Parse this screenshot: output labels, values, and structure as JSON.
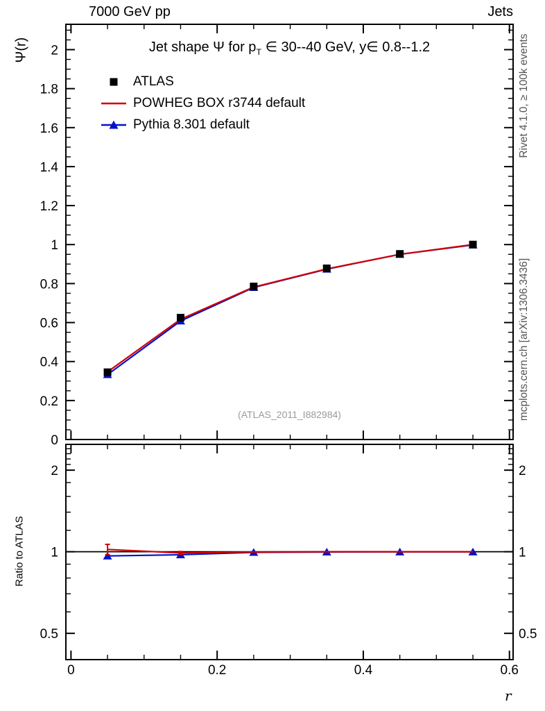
{
  "header": {
    "left": "7000 GeV pp",
    "right": "Jets"
  },
  "title": {
    "prefix": "Jet shape Ψ for p",
    "sub": "T",
    "suffix": " ∈ 30--40 GeV, y∈ 0.8--1.2"
  },
  "labels": {
    "ylabel": "Ψ(r)",
    "ratio_ylabel": "Ratio to ATLAS",
    "xlabel": "r"
  },
  "watermark": "(ATLAS_2011_I882984)",
  "side_notes": {
    "top": "Rivet 4.1.0, ≥ 100k events",
    "bottom": "mcplots.cern.ch [arXiv:1306.3436]"
  },
  "legend": [
    {
      "label": "ATLAS",
      "marker": "square",
      "color": "#000000"
    },
    {
      "label": "POWHEG BOX r3744 default",
      "marker": "line",
      "color": "#d10000"
    },
    {
      "label": "Pythia 8.301 default",
      "marker": "line-triangle",
      "color": "#0011cc"
    }
  ],
  "chart_data": {
    "type": "line",
    "title": "Jet shape Ψ for p_T ∈ 30--40 GeV, y ∈ 0.8--1.2",
    "xlabel": "r",
    "xlim": [
      -0.007,
      0.605
    ],
    "xticks": [
      0,
      0.2,
      0.4,
      0.6
    ],
    "xtick_minor_step": 0.05,
    "x": [
      0.05,
      0.15,
      0.25,
      0.35,
      0.45,
      0.55
    ],
    "main": {
      "ylabel": "Ψ(r)",
      "ylim": [
        0,
        2.13
      ],
      "ytick_step": 0.2,
      "ytick_minor_step": 0.05,
      "series": [
        {
          "name": "ATLAS",
          "style": "marker-square",
          "color": "#000000",
          "values": [
            0.345,
            0.625,
            0.785,
            0.878,
            0.952,
            1.0
          ],
          "errors": [
            0.012,
            0.01,
            0.008,
            0.006,
            0.005,
            0.004
          ]
        },
        {
          "name": "POWHEG BOX r3744 default",
          "style": "line",
          "color": "#d10000",
          "values": [
            0.347,
            0.617,
            0.782,
            0.875,
            0.95,
            1.0
          ]
        },
        {
          "name": "Pythia 8.301 default",
          "style": "line-triangle",
          "color": "#0011cc",
          "values": [
            0.333,
            0.608,
            0.78,
            0.874,
            0.95,
            0.998
          ]
        }
      ]
    },
    "ratio": {
      "ylabel": "Ratio to ATLAS",
      "yscale": "log",
      "ylim": [
        0.4,
        2.49
      ],
      "yticks": [
        0.5,
        1,
        2
      ],
      "yticks_minor": [
        0.6,
        0.7,
        0.8,
        0.9,
        1.2,
        1.4,
        1.6,
        1.8,
        2.1,
        2.2,
        2.3,
        2.4
      ],
      "reference": 1,
      "series": [
        {
          "name": "POWHEG BOX r3744 default",
          "style": "line",
          "color": "#d10000",
          "values": [
            1.02,
            0.99,
            0.998,
            1.0,
            1.0,
            1.0
          ],
          "errors": [
            0.045,
            0.012,
            0,
            0,
            0,
            0
          ]
        },
        {
          "name": "Pythia 8.301 default",
          "style": "line-triangle",
          "color": "#0011cc",
          "values": [
            0.965,
            0.975,
            0.995,
            0.998,
            0.999,
            0.999
          ],
          "errors": [
            0,
            0,
            0,
            0,
            0,
            0
          ]
        }
      ]
    }
  }
}
